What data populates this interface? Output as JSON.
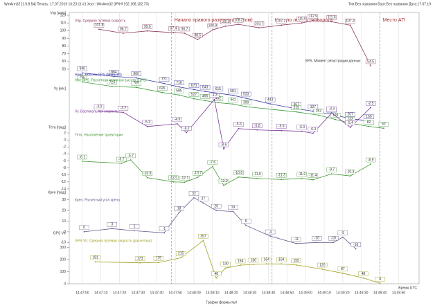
{
  "chart_data": {
    "type": "line",
    "header_left": "WinArm32 [1.9.8.54]   Печать: 17.07.2019 16:23:11   #1   Хост: WinArm32 (IP/Hf 192.168.102.70)",
    "header_right": "Тип:Без названия Борт:Без названия Дата:17.07.19",
    "x_label": "Время UTC",
    "footer": "График формы №#",
    "annotations": [
      "GPS. Момент регистрации данных"
    ],
    "xlim": [
      "14:46:53",
      "14:50:01"
    ],
    "xticks": [
      "14:47:00",
      "14:47:10",
      "14:47:20",
      "14:47:30",
      "14:47:40",
      "14:47:50",
      "14:48:00",
      "14:48:10",
      "14:48:20",
      "14:48:30",
      "14:48:40",
      "14:48:50",
      "14:49:00",
      "14:49:10",
      "14:49:20",
      "14:49:30",
      "14:49:40",
      "14:49:50"
    ],
    "events": [
      {
        "x": "14:47:48",
        "label": "Начало правого разворота (летом)"
      },
      {
        "x": "14:48:42",
        "label": "Начало левого разворота"
      },
      {
        "x": "14:49:40",
        "label": "Место АП"
      }
    ],
    "panels": [
      {
        "ylabel": "Vпр [км/ч]",
        "ylim": [
          50,
          120
        ],
        "yticks": [
          50,
          60,
          70,
          80,
          90,
          100,
          110,
          120
        ],
        "series": [
          {
            "name": "Vпр. Средняя путевая скорость",
            "color": "#8b3a62",
            "x": [
              "14:47:09",
              "14:47:22",
              "14:47:35",
              "14:47:49",
              "14:47:55",
              "14:48:02",
              "14:48:10",
              "14:48:17",
              "14:48:24",
              "14:48:35",
              "14:48:47",
              "14:48:58",
              "14:49:04",
              "14:49:14",
              "14:49:24",
              "14:49:35"
            ],
            "values": [
              101.8,
              96.7,
              99.6,
              97.4,
              96.7,
              88.5,
              100.9,
              105.8,
              108.2,
              103.7,
              107.2,
              110.0,
              112.9,
              111.6,
              107.2,
              54.5
            ],
            "value_labels": [
              "101.8",
              "96.7",
              "99.6",
              "97.4",
              "96.7",
              "88.5",
              "100.9",
              "105.8",
              "108.2",
              "103.7",
              "107.2",
              "110.0",
              "112.9",
              "111.6",
              "107.2",
              "54.5"
            ]
          }
        ]
      },
      {
        "ylim": [
          0,
          1000
        ],
        "yticks": [],
        "series": [
          {
            "name": "Hgeo. Высота GPS (WGS-84)",
            "color": "#3a3aa0",
            "x": [
              "14:47:00",
              "14:47:17",
              "14:47:29",
              "14:47:44",
              "14:47:52",
              "14:48:00",
              "14:48:06",
              "14:48:13",
              "14:48:21",
              "14:48:28",
              "14:48:41",
              "14:48:55",
              "14:49:04",
              "14:49:14",
              "14:49:24",
              "14:49:34"
            ],
            "values": [
              940,
              884,
              860,
              771,
              716,
              673,
              643,
              615,
              581,
              533,
              443,
              367,
              327,
              277,
              207,
              169
            ],
            "value_labels": [
              "940",
              "884",
              "860",
              "771",
              "716",
              "673",
              "643",
              "615",
              "581",
              "533",
              "443",
              "367",
              "327",
              "277",
              "207",
              "169"
            ]
          },
          {
            "name": "Hнс GPS. Расчетная истинная высота (GPS)",
            "color": "#3a9a3a",
            "x": [
              "14:47:00",
              "14:47:16",
              "14:47:29",
              "14:47:43",
              "14:47:52",
              "14:48:00",
              "14:48:06",
              "14:48:13",
              "14:48:21",
              "14:48:28",
              "14:48:55",
              "14:49:07",
              "14:49:16",
              "14:49:24",
              "14:49:34",
              "14:49:42"
            ],
            "values": [
              796,
              723,
              709,
              626,
              585,
              527,
              496,
              462,
              441,
              399,
              315,
              262,
              193,
              133,
              82,
              52
            ],
            "value_labels": [
              "796",
              "723",
              "709",
              "626",
              "585",
              "527",
              "496",
              "462",
              "441",
              "399",
              "315",
              "262",
              "193",
              "133",
              "82",
              "52"
            ]
          }
        ]
      },
      {
        "ylabel": "Vy [м/с]",
        "ylim": [
          -9,
          0
        ],
        "yticks": [],
        "series": [
          {
            "name": "Vy. Вертикальная скорость",
            "color": "#7a3a9a",
            "x": [
              "14:47:09",
              "14:47:22",
              "14:47:35",
              "14:47:51",
              "14:47:56",
              "14:48:11",
              "14:48:16",
              "14:48:24",
              "14:48:34",
              "14:48:47",
              "14:48:58",
              "14:49:04",
              "14:49:14",
              "14:49:24",
              "14:49:35"
            ],
            "values": [
              -3.0,
              -3.2,
              -5.3,
              -4.9,
              -6.2,
              -1.3,
              -8.6,
              -5.6,
              -5.8,
              -5.9,
              -6.0,
              -6.3,
              -3.3,
              -5.4,
              -2.5
            ],
            "value_labels": [
              "-3.0",
              "-3.2",
              "-5.3",
              "-4.9",
              "-6.2",
              "-1.3",
              "-8.6",
              "-5.6",
              "-5.8",
              "-5.9",
              "-6.0",
              "-6.3",
              "-3.3",
              "-5.4",
              "-2.5"
            ]
          }
        ]
      },
      {
        "ylabel": "Тета [град]",
        "ylim": [
          -15,
          3
        ],
        "yticks": [
          2,
          0,
          -2,
          -4,
          -6,
          -8,
          -10,
          -12,
          -14
        ],
        "series": [
          {
            "name": "Тета. Наклонение траектории",
            "color": "#4a9a3a",
            "x": [
              "14:47:00",
              "14:47:21",
              "14:47:26",
              "14:47:35",
              "14:47:49",
              "14:47:55",
              "14:48:02",
              "14:48:10",
              "14:48:16",
              "14:48:24",
              "14:48:34",
              "14:48:47",
              "14:48:58",
              "14:49:04",
              "14:49:14",
              "14:49:24",
              "14:49:35"
            ],
            "values": [
              -6.1,
              -6.7,
              -5.7,
              -10.8,
              -12.0,
              -12.1,
              -10.7,
              -7.6,
              -13.0,
              -10.6,
              -11.0,
              -11.3,
              -11.0,
              -11.4,
              -9.7,
              -10.3,
              -6.9
            ],
            "value_labels": [
              "-6.1",
              "-6.7",
              "-5.7",
              "-10.8",
              "-12.0",
              "-12.1",
              "-10.7",
              "-7.6",
              "-13.0",
              "-10.6",
              "-11.0",
              "-11.3",
              "-11.0",
              "-11.4",
              "-9.7",
              "-10.3",
              "-6.9"
            ]
          }
        ]
      },
      {
        "ylabel": "Крен [град]",
        "ylim": [
          -15,
          35
        ],
        "yticks": [
          -10,
          0,
          10,
          20,
          30
        ],
        "series": [
          {
            "name": "Крен. Расчетный угол крена",
            "color": "#6a5a8a",
            "x": [
              "14:47:01",
              "14:47:16",
              "14:47:28",
              "14:47:44",
              "14:47:52",
              "14:48:00",
              "14:48:05",
              "14:48:12",
              "14:48:21",
              "14:48:28",
              "14:48:41",
              "14:48:55",
              "14:49:06",
              "14:49:15",
              "14:49:20",
              "14:49:27"
            ],
            "values": [
              0,
              3,
              1,
              -1,
              18,
              32,
              27,
              20,
              19,
              6,
              -4,
              -11,
              -10,
              -10,
              -5,
              -16
            ]
          }
        ]
      },
      {
        "ylabel": "GPS Vtr",
        "ylim": [
          0,
          400
        ],
        "yticks": [
          0,
          100,
          200,
          300
        ],
        "series": [
          {
            "name": "GPS Vtr. Средняя путевая скорость (расчетная)",
            "color": "#a0a020",
            "x": [
              "14:47:07",
              "14:47:31",
              "14:47:41",
              "14:47:53",
              "14:48:05",
              "14:48:12",
              "14:48:17",
              "14:48:25",
              "14:48:32",
              "14:48:39",
              "14:48:47",
              "14:48:55",
              "14:49:09",
              "14:49:20",
              "14:49:31",
              "14:49:40"
            ],
            "values": [
              181,
              173,
              175,
              215,
              357,
              48,
              130,
              154,
              160,
              164,
              164,
              155,
              120,
              87,
              48,
              4
            ]
          }
        ]
      }
    ]
  }
}
